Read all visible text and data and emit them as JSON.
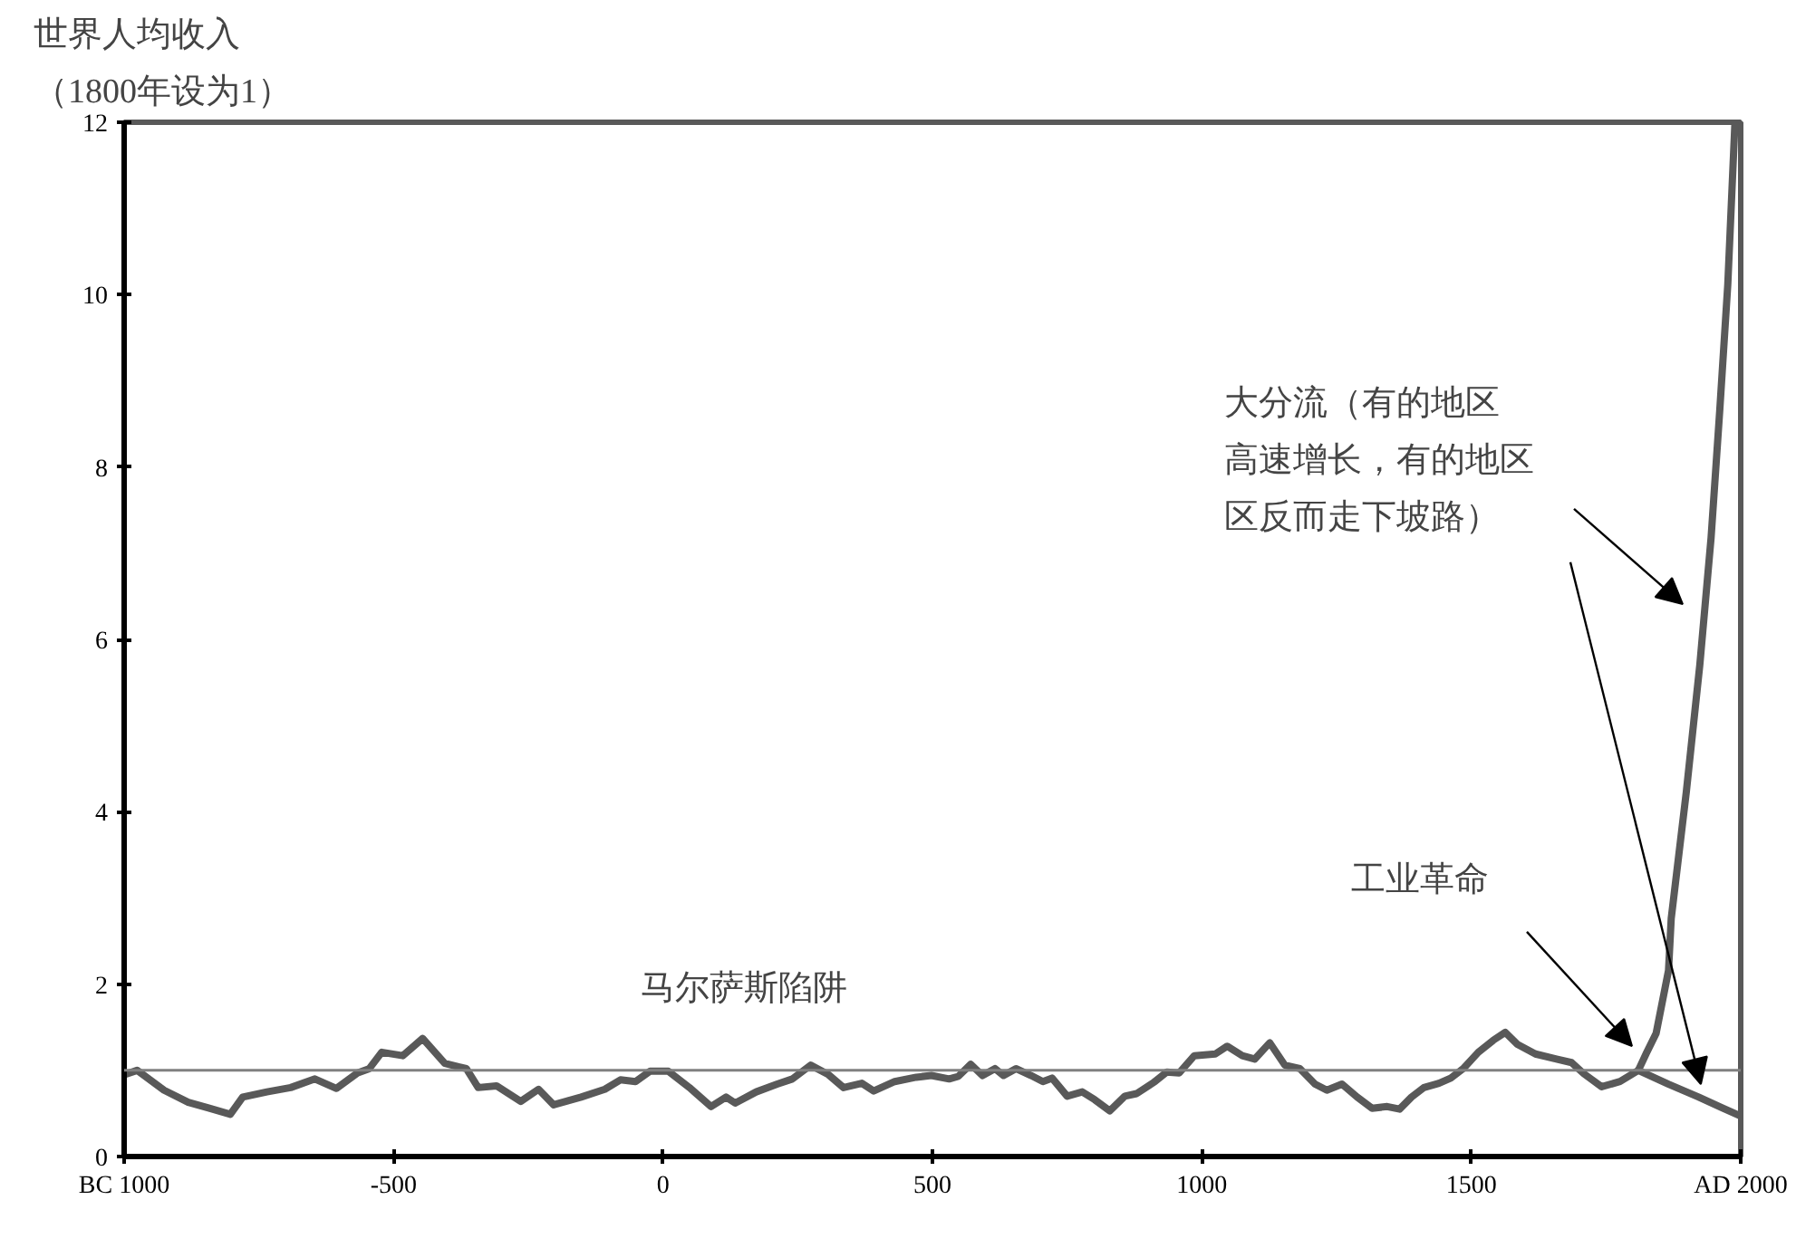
{
  "chart_data": {
    "type": "line",
    "ylabel": "世界人均收入（1800年设为1）",
    "xlim": [
      -1000,
      2000
    ],
    "xticks": [
      {
        "value": -1000,
        "label": "BC 1000"
      },
      -500,
      0,
      500,
      1000,
      1500,
      {
        "value": 2000,
        "label": "AD 2000"
      }
    ],
    "ylim": [
      0,
      12
    ],
    "yticks": [
      0,
      2,
      4,
      6,
      8,
      10,
      12
    ],
    "grid": false,
    "marker": "none",
    "line_style": "solid",
    "series": [
      {
        "color": "#595959",
        "x": [
          -1000,
          -976,
          -926,
          -881,
          -842,
          -803,
          -780,
          -735,
          -691,
          -646,
          -606,
          -567,
          -545,
          -522,
          -483,
          -446,
          -405,
          -365,
          -343,
          -309,
          -264,
          -231,
          -203,
          -152,
          -108,
          -79,
          -51,
          -24,
          10,
          49,
          89,
          117,
          134,
          173,
          212,
          240,
          274,
          307,
          335,
          369,
          391,
          430,
          470,
          498,
          531,
          548,
          571,
          593,
          616,
          632,
          655,
          683,
          705,
          722,
          750,
          778,
          801,
          829,
          857,
          879,
          913,
          935,
          958,
          986,
          1025,
          1047,
          1075,
          1098,
          1126,
          1154,
          1182,
          1210,
          1232,
          1260,
          1288,
          1316,
          1344,
          1367,
          1389,
          1412,
          1440,
          1462,
          1485,
          1513,
          1541,
          1563,
          1586,
          1619,
          1658,
          1686,
          1709,
          1742,
          1776,
          1810
        ],
        "values": [
          0.95,
          1.0,
          0.77,
          0.63,
          0.56,
          0.49,
          0.69,
          0.75,
          0.8,
          0.9,
          0.79,
          0.97,
          1.02,
          1.21,
          1.17,
          1.37,
          1.08,
          1.02,
          0.8,
          0.82,
          0.64,
          0.78,
          0.6,
          0.69,
          0.78,
          0.89,
          0.87,
          0.99,
          0.99,
          0.8,
          0.58,
          0.69,
          0.62,
          0.75,
          0.84,
          0.9,
          1.06,
          0.95,
          0.8,
          0.85,
          0.76,
          0.87,
          0.92,
          0.94,
          0.9,
          0.93,
          1.07,
          0.94,
          1.02,
          0.94,
          1.02,
          0.94,
          0.87,
          0.91,
          0.7,
          0.75,
          0.66,
          0.53,
          0.7,
          0.73,
          0.87,
          0.98,
          0.97,
          1.17,
          1.19,
          1.28,
          1.17,
          1.13,
          1.32,
          1.06,
          1.02,
          0.84,
          0.77,
          0.84,
          0.69,
          0.56,
          0.58,
          0.55,
          0.69,
          0.8,
          0.85,
          0.91,
          1.02,
          1.21,
          1.35,
          1.44,
          1.3,
          1.19,
          1.13,
          1.09,
          0.96,
          0.81,
          0.87,
          1.0
        ]
      },
      {
        "color": "#595959",
        "x": [
          1810,
          1825,
          1843,
          1866,
          1871,
          1899,
          1924,
          1945,
          1961,
          1976,
          1989,
          1992
        ],
        "values": [
          1.0,
          1.2,
          1.43,
          2.16,
          2.76,
          4.23,
          5.7,
          7.18,
          8.65,
          10.12,
          11.96,
          12
        ]
      },
      {
        "color": "#595959",
        "x": [
          1810,
          1866,
          1922,
          1967,
          2000
        ],
        "values": [
          1.0,
          0.84,
          0.69,
          0.56,
          0.47
        ]
      }
    ],
    "ref_lines": [
      {
        "axis": "y",
        "value": 1,
        "color": "#808080"
      }
    ],
    "annotations": [
      "马尔萨斯陷阱",
      "工业革命",
      "大分流（有的地区高速增长，有的地区区反而走下坡路）"
    ]
  }
}
